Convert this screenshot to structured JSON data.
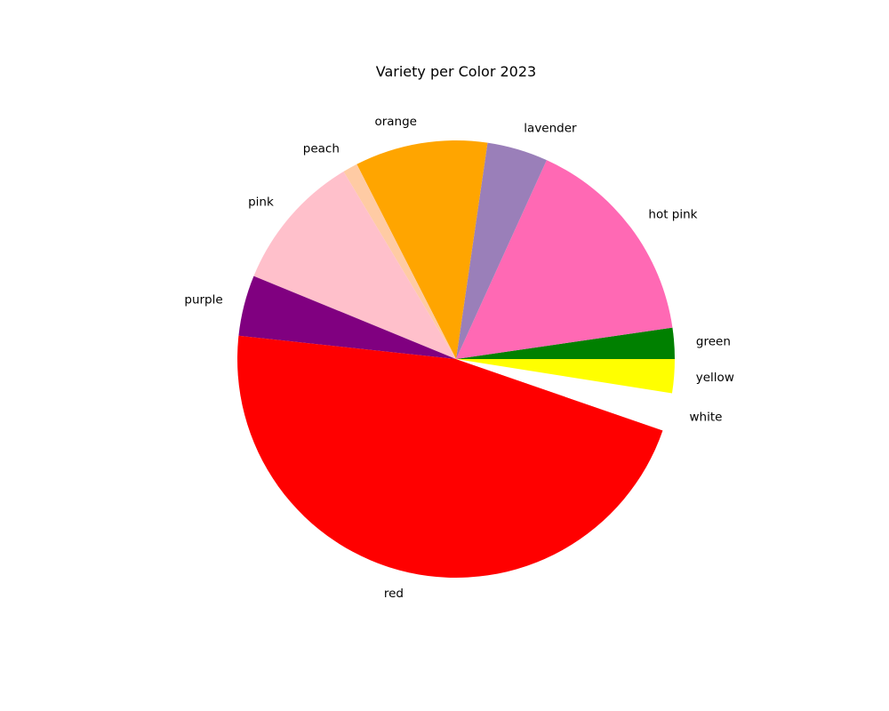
{
  "chart_data": {
    "type": "pie",
    "title": "Variety per Color 2023",
    "slices": [
      {
        "label": "green",
        "value": 2.3,
        "color": "#008000"
      },
      {
        "label": "hot pink",
        "value": 15.9,
        "color": "#FF69B4"
      },
      {
        "label": "lavender",
        "value": 4.5,
        "color": "#9A7FB9"
      },
      {
        "label": "orange",
        "value": 9.8,
        "color": "#FFA500"
      },
      {
        "label": "peach",
        "value": 1.1,
        "color": "#FFCBA4"
      },
      {
        "label": "pink",
        "value": 10.2,
        "color": "#FFC0CB"
      },
      {
        "label": "purple",
        "value": 4.5,
        "color": "#800080"
      },
      {
        "label": "red",
        "value": 46.4,
        "color": "#FF0000"
      },
      {
        "label": "white",
        "value": 2.8,
        "color": "#FFFFFF"
      },
      {
        "label": "yellow",
        "value": 2.5,
        "color": "#FFFF00"
      }
    ],
    "start_angle": 0,
    "direction": "counterclockwise",
    "legend": "none"
  }
}
